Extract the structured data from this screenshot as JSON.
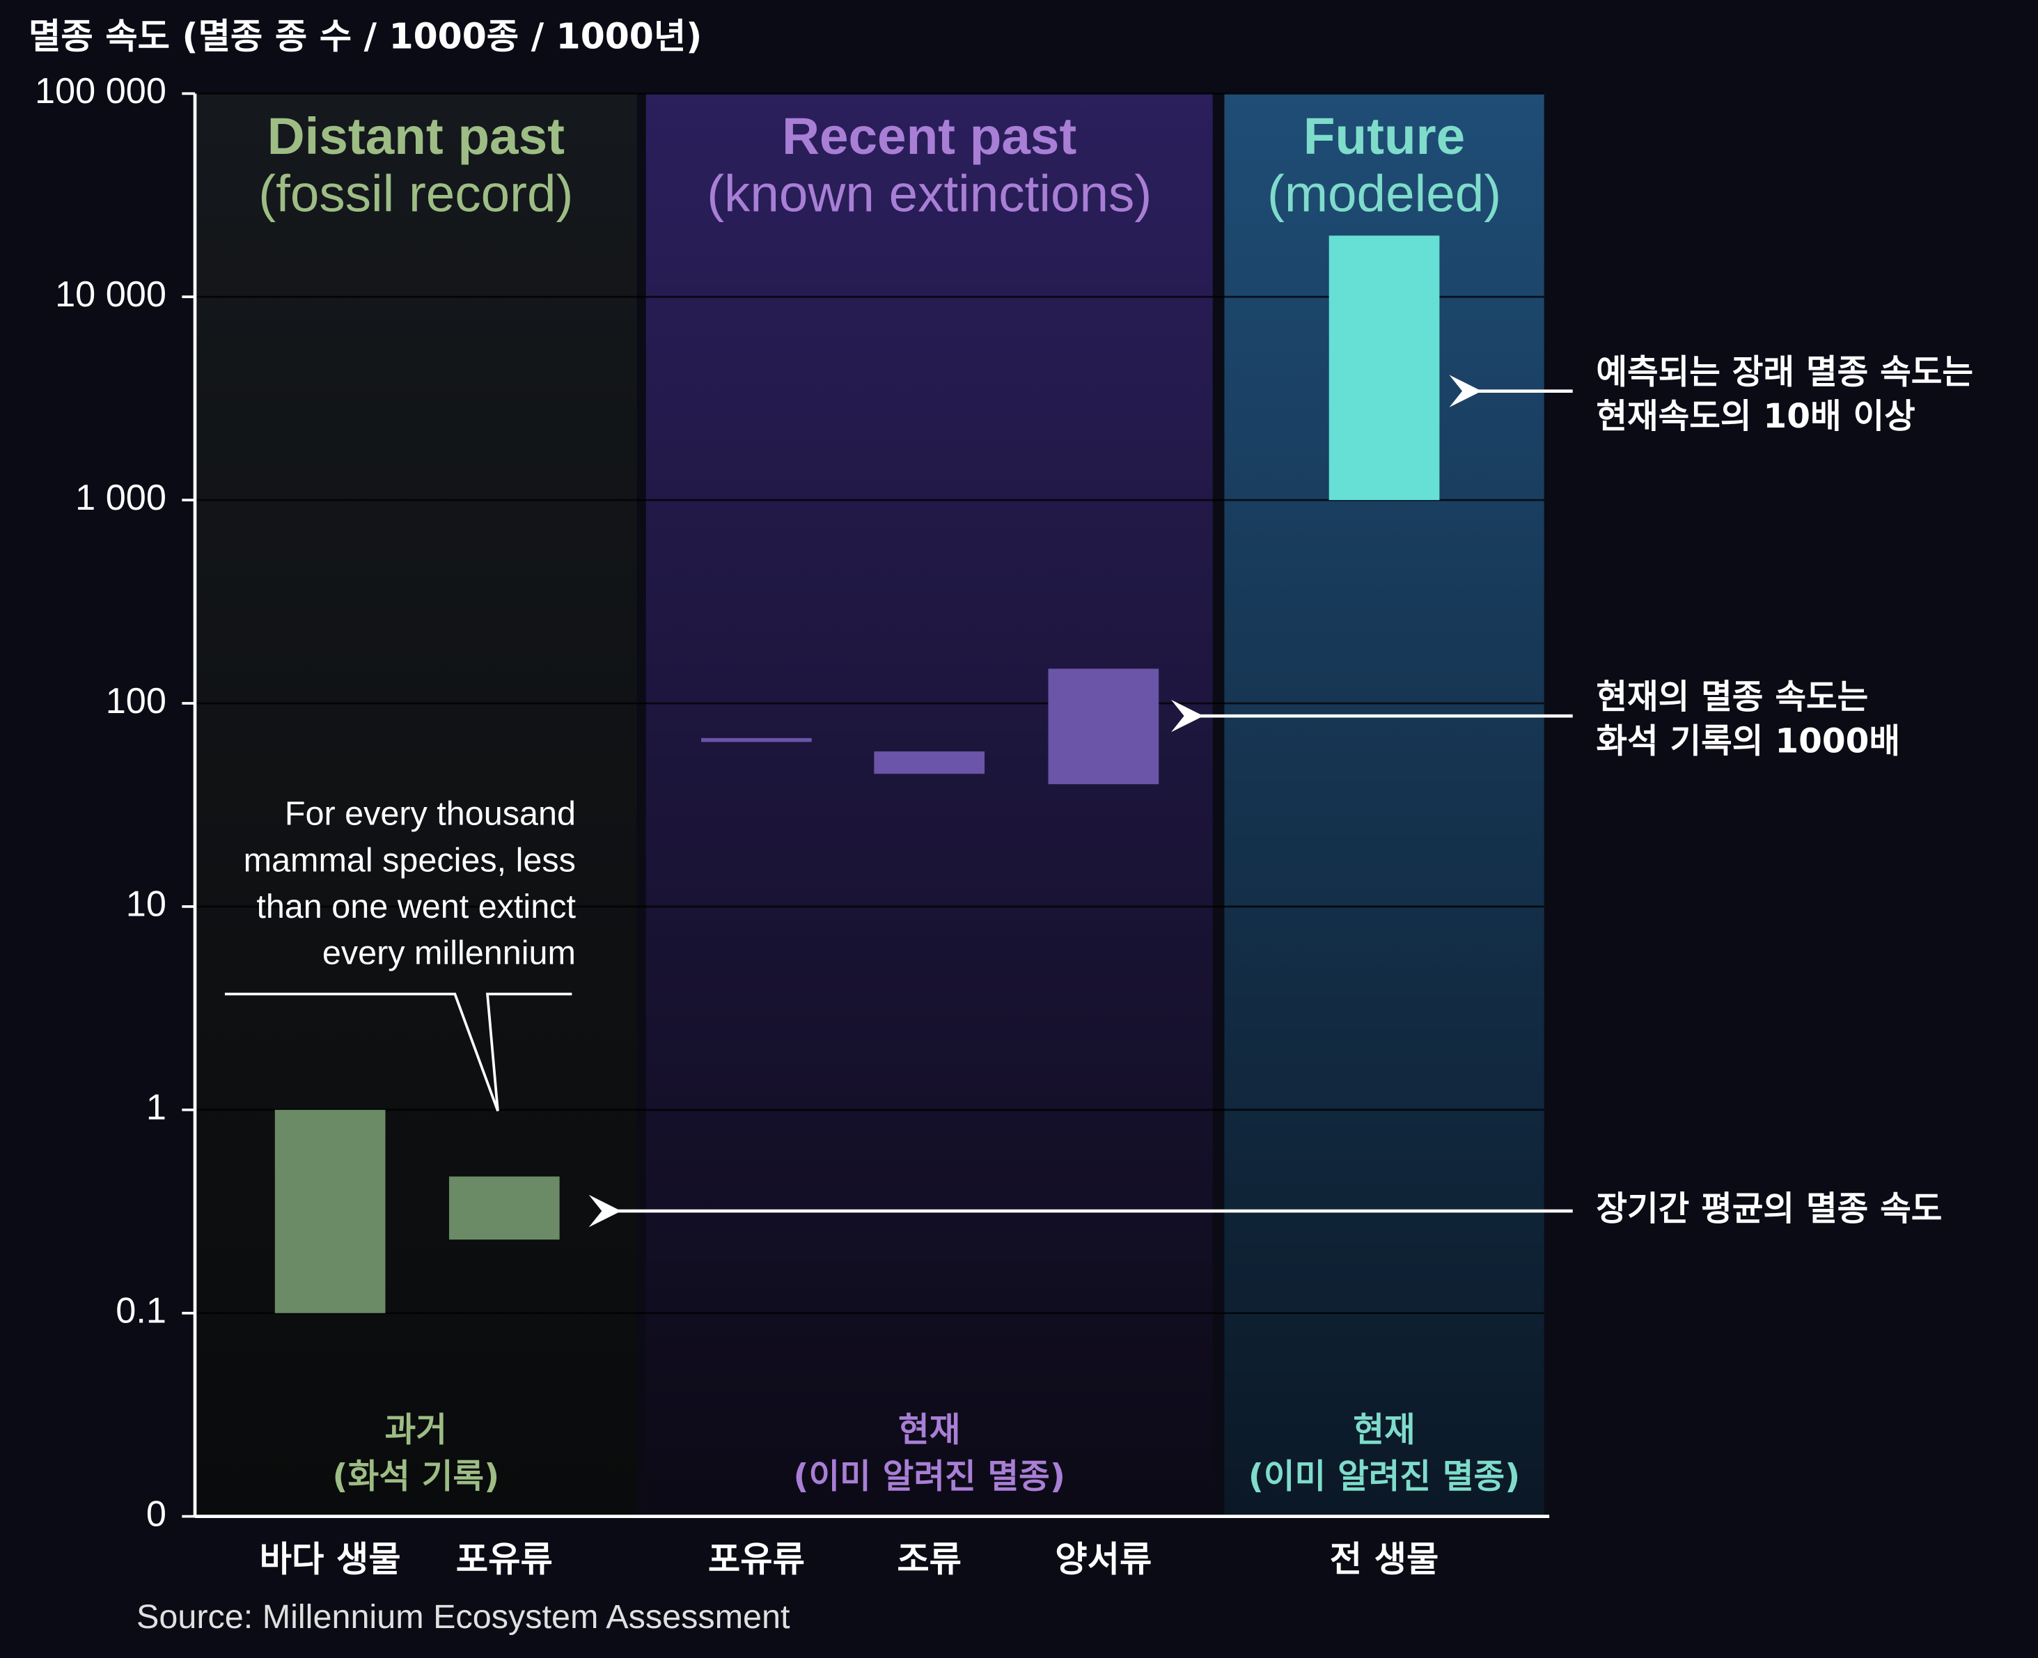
{
  "chart_data": {
    "type": "range-bar",
    "y_label": "멸종 속도 (멸종 종 수 / 1000종 / 1000년)",
    "log_scale": true,
    "grid": true,
    "ylim": [
      0.01,
      100000
    ],
    "yticks": [
      {
        "value": 0.01,
        "label": "0"
      },
      0.1,
      1,
      10,
      100,
      {
        "value": 1000,
        "label": "1 000"
      },
      {
        "value": 10000,
        "label": "10 000"
      },
      {
        "value": 100000,
        "label": "100 000"
      }
    ],
    "groups": [
      {
        "title": "Distant past",
        "subtitle": "(fossil record)",
        "footer": [
          "과거",
          "(화석 기록)"
        ],
        "text_color": "#9dbd85",
        "color": "#6b8a66",
        "categories": [
          "바다 생물",
          "포유류"
        ],
        "low": [
          0.1,
          0.23
        ],
        "high": [
          1,
          0.47
        ]
      },
      {
        "title": "Recent past",
        "subtitle": "(known extinctions)",
        "footer": [
          "현재",
          "(이미 알려진 멸종)"
        ],
        "text_color": "#a97fd6",
        "color": "#6a55a8",
        "categories": [
          "포유류",
          "조류",
          "양서류"
        ],
        "low": [
          65,
          45,
          40
        ],
        "high": [
          67,
          58,
          148
        ]
      },
      {
        "title": "Future",
        "subtitle": "(modeled)",
        "footer": [
          "현재",
          "(이미 알려진 멸종)"
        ],
        "text_color": "#7fdccb",
        "color": "#66e0d4",
        "categories": [
          "전 생물"
        ],
        "low": [
          1000
        ],
        "high": [
          20000
        ]
      }
    ],
    "annotations": [
      {
        "lines": [
          "For every thousand",
          "mammal species, less",
          "than one went extinct",
          "every millennium"
        ]
      },
      {
        "lines": [
          "예측되는 장래 멸종 속도는",
          "현재속도의 10배 이상"
        ]
      },
      {
        "lines": [
          "현재의 멸종 속도는",
          "화석 기록의 1000배"
        ]
      },
      {
        "lines": [
          "장기간 평균의 멸종 속도"
        ]
      }
    ],
    "source": "Source: Millennium Ecosystem Assessment"
  }
}
